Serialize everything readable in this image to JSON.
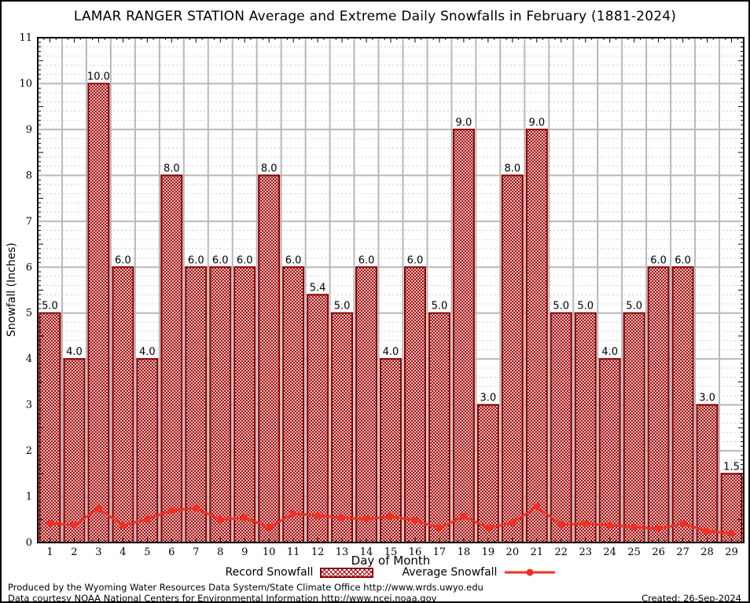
{
  "title": "LAMAR RANGER STATION Average and Extreme Daily Snowfalls in February (1881-2024)",
  "chart_data": {
    "type": "bar",
    "categories": [
      1,
      2,
      3,
      4,
      5,
      6,
      7,
      8,
      9,
      10,
      11,
      12,
      13,
      14,
      15,
      16,
      17,
      18,
      19,
      20,
      21,
      22,
      23,
      24,
      25,
      26,
      27,
      28,
      29
    ],
    "series": [
      {
        "name": "Record Snowfall",
        "type": "bar",
        "values": [
          5.0,
          4.0,
          10.0,
          6.0,
          4.0,
          8.0,
          6.0,
          6.0,
          6.0,
          8.0,
          6.0,
          5.4,
          5.0,
          6.0,
          4.0,
          6.0,
          5.0,
          9.0,
          3.0,
          8.0,
          9.0,
          5.0,
          5.0,
          4.0,
          5.0,
          6.0,
          6.0,
          3.0,
          1.5
        ],
        "bar_labels": [
          "5.0",
          "4.0",
          "10.0",
          "6.0",
          "4.0",
          "8.0",
          "6.0",
          "6.0",
          "6.0",
          "8.0",
          "6.0",
          "5.4",
          "5.0",
          "6.0",
          "4.0",
          "6.0",
          "5.0",
          "9.0",
          "3.0",
          "8.0",
          "9.0",
          "5.0",
          "5.0",
          "4.0",
          "5.0",
          "6.0",
          "6.0",
          "3.0",
          "1.5"
        ]
      },
      {
        "name": "Average Snowfall",
        "type": "line",
        "values": [
          0.42,
          0.38,
          0.74,
          0.37,
          0.51,
          0.7,
          0.75,
          0.5,
          0.54,
          0.33,
          0.63,
          0.59,
          0.54,
          0.51,
          0.57,
          0.48,
          0.32,
          0.57,
          0.32,
          0.43,
          0.78,
          0.39,
          0.41,
          0.38,
          0.34,
          0.3,
          0.41,
          0.25,
          0.2
        ]
      }
    ],
    "title": "LAMAR RANGER STATION Average and Extreme Daily Snowfalls in February (1881-2024)",
    "xlabel": "Day of Month",
    "ylabel": "Snowfall (Inches)",
    "ylim": [
      0,
      11
    ],
    "ytick_step": 1,
    "yticks": [
      0,
      1,
      2,
      3,
      4,
      5,
      6,
      7,
      8,
      9,
      10,
      11
    ],
    "grid": true,
    "legend_position": "bottom",
    "colors": {
      "bar_hatch": "#a40000",
      "bar_border": "#8b0000",
      "line": "#f03024",
      "grid_major": "#b8b8b8",
      "grid_minor": "#cfcfcf",
      "frame": "#000000",
      "text": "#000000"
    }
  },
  "legend": {
    "record_label": "Record Snowfall",
    "average_label": "Average Snowfall"
  },
  "footer": {
    "line1": "Produced by the Wyoming Water Resources Data System/State Climate Office http://www.wrds.uwyo.edu",
    "line2": "Data courtesy NOAA National Centers for Environmental Information http://www.ncei.noaa.gov",
    "created": "Created: 26-Sep-2024"
  }
}
